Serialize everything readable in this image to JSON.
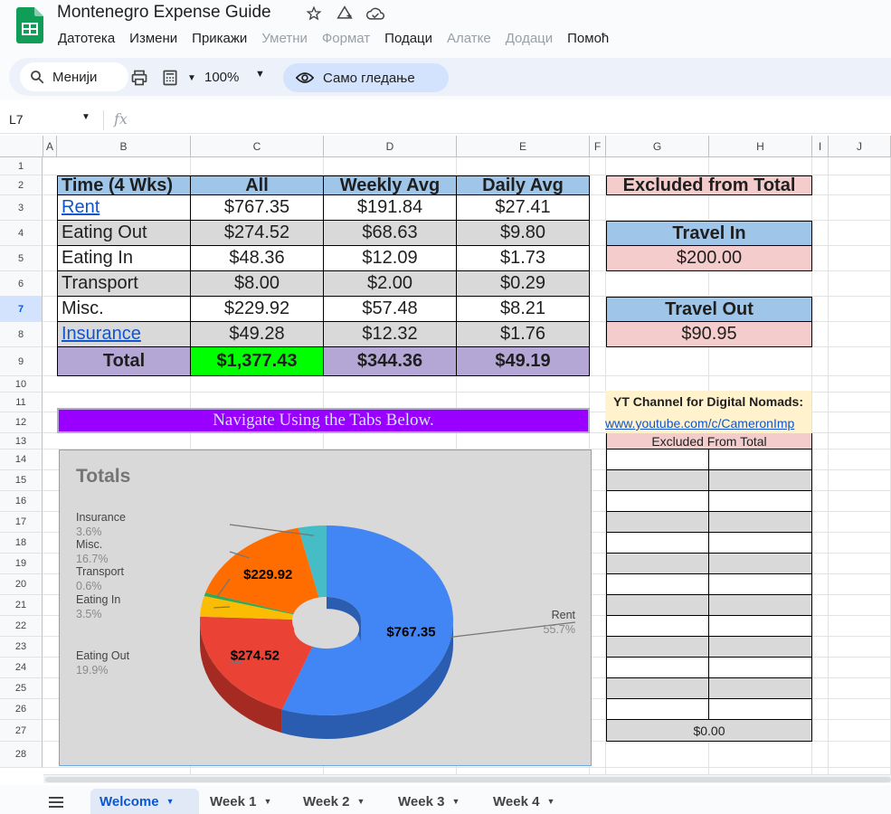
{
  "app": {
    "title": "Montenegro Expense Guide",
    "menu": [
      "Датотека",
      "Измени",
      "Прикажи",
      "Уметни",
      "Формат",
      "Подаци",
      "Алатке",
      "Додаци",
      "Помоћ"
    ],
    "menu_disabled": [
      false,
      false,
      false,
      true,
      true,
      false,
      true,
      true,
      false
    ]
  },
  "toolbar": {
    "menus_label": "Менији",
    "zoom": "100%",
    "view_only_label": "Само гледање"
  },
  "formula": {
    "cell_ref": "L7",
    "fx_label": "fx"
  },
  "columns": [
    "A",
    "B",
    "C",
    "D",
    "E",
    "F",
    "G",
    "H",
    "I",
    "J"
  ],
  "rows": [
    "1",
    "2",
    "3",
    "4",
    "5",
    "6",
    "7",
    "8",
    "9",
    "10",
    "11",
    "12",
    "13",
    "14",
    "15",
    "16",
    "17",
    "18",
    "19",
    "20",
    "21",
    "22",
    "23",
    "24",
    "25",
    "26",
    "27",
    "28"
  ],
  "selected_row": "7",
  "summary": {
    "headers": [
      "Time (4 Wks)",
      "All",
      "Weekly Avg",
      "Daily Avg"
    ],
    "rows": [
      {
        "label": "Rent",
        "all": "$767.35",
        "weekly": "$191.84",
        "daily": "$27.41",
        "link": true
      },
      {
        "label": "Eating Out",
        "all": "$274.52",
        "weekly": "$68.63",
        "daily": "$9.80",
        "link": false
      },
      {
        "label": "Eating In",
        "all": "$48.36",
        "weekly": "$12.09",
        "daily": "$1.73",
        "link": false
      },
      {
        "label": "Transport",
        "all": "$8.00",
        "weekly": "$2.00",
        "daily": "$0.29",
        "link": false
      },
      {
        "label": "Misc.",
        "all": "$229.92",
        "weekly": "$57.48",
        "daily": "$8.21",
        "link": false
      },
      {
        "label": "Insurance",
        "all": "$49.28",
        "weekly": "$12.32",
        "daily": "$1.76",
        "link": true
      }
    ],
    "total": {
      "label": "Total",
      "all": "$1,377.43",
      "weekly": "$344.36",
      "daily": "$49.19"
    }
  },
  "excluded": {
    "header": "Excluded from Total",
    "travel_in_label": "Travel In",
    "travel_in_value": "$200.00",
    "travel_out_label": "Travel Out",
    "travel_out_value": "$90.95"
  },
  "nav_banner": "Navigate Using the Tabs Below.",
  "youtube": {
    "heading": "YT Channel for Digital Nomads:",
    "link": "www.youtube.com/c/CameronImp"
  },
  "excluded_table": {
    "header": "Excluded From Total",
    "total": "$0.00"
  },
  "chart_data": {
    "type": "pie",
    "title": "Totals",
    "donut": true,
    "labels": [
      "Rent",
      "Eating Out",
      "Eating In",
      "Transport",
      "Misc.",
      "Insurance"
    ],
    "values": [
      767.35,
      274.52,
      48.36,
      8.0,
      229.92,
      49.28
    ],
    "percent_labels": [
      "55.7%",
      "19.9%",
      "3.5%",
      "0.6%",
      "16.7%",
      "3.6%"
    ],
    "value_labels": [
      "$767.35",
      "$274.52",
      "",
      "",
      "$229.92",
      ""
    ],
    "colors": [
      "#4285f4",
      "#ea4335",
      "#fbbc04",
      "#34a853",
      "#ff6d01",
      "#46bdc6"
    ],
    "dark_colors": [
      "#2a5db0",
      "#a52a22",
      "#b58605",
      "#237638",
      "#b54c00",
      "#2f8d94"
    ]
  },
  "sheets": [
    {
      "name": "Welcome",
      "active": true
    },
    {
      "name": "Week 1",
      "active": false
    },
    {
      "name": "Week 2",
      "active": false
    },
    {
      "name": "Week 3",
      "active": false
    },
    {
      "name": "Week 4",
      "active": false
    }
  ]
}
